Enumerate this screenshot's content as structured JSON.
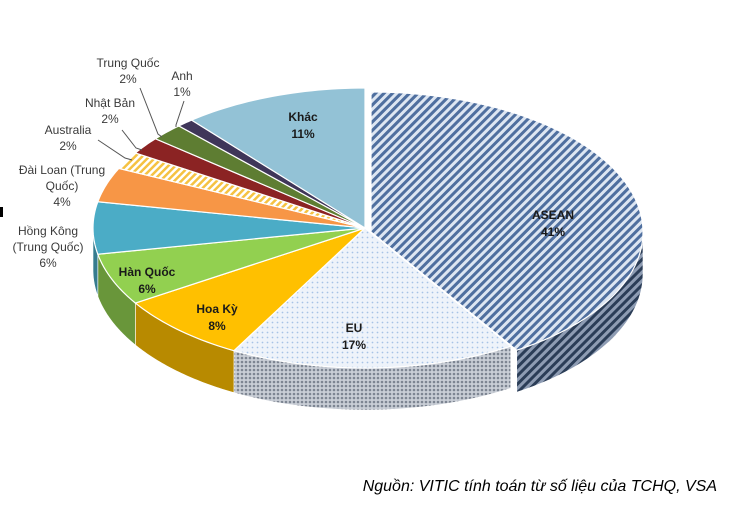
{
  "chart_data": {
    "type": "pie",
    "style": "3d-exploded-tilted",
    "slices": [
      {
        "label": "ASEAN",
        "value_label": "41%",
        "value": 41,
        "color": "#4f6f9f",
        "pattern": "diag-stripes",
        "label_inside": true
      },
      {
        "label": "EU",
        "value_label": "17%",
        "value": 17,
        "color": "#a7c3e6",
        "pattern": "dots",
        "label_inside": true
      },
      {
        "label": "Hoa Kỳ",
        "value_label": "8%",
        "value": 8,
        "color": "#ffc000",
        "pattern": "solid",
        "label_inside": true
      },
      {
        "label": "Hàn Quốc",
        "value_label": "6%",
        "value": 6,
        "color": "#92d050",
        "pattern": "solid",
        "label_inside": true
      },
      {
        "label": "Hồng Kông (Trung Quốc)",
        "label_lines": [
          "Hồng Kông",
          "(Trung Quốc)"
        ],
        "value_label": "6%",
        "value": 6,
        "color": "#4bacc6",
        "pattern": "solid",
        "label_inside": false
      },
      {
        "label": "Đài Loan (Trung Quốc)",
        "label_lines": [
          "Đài Loan (Trung",
          "Quốc)"
        ],
        "value_label": "4%",
        "value": 4,
        "color": "#f79646",
        "pattern": "solid",
        "label_inside": false
      },
      {
        "label": "Australia",
        "label_lines": [
          "Australia"
        ],
        "value_label": "2%",
        "value": 2,
        "color": "#f5c242",
        "pattern": "stripes-light",
        "label_inside": false
      },
      {
        "label": "Nhật Bản",
        "label_lines": [
          "Nhật Bản"
        ],
        "value_label": "2%",
        "value": 2,
        "color": "#8b2323",
        "pattern": "solid",
        "label_inside": false
      },
      {
        "label": "Trung Quốc",
        "label_lines": [
          "Trung Quốc"
        ],
        "value_label": "2%",
        "value": 2,
        "color": "#5e7d32",
        "pattern": "solid",
        "label_inside": false
      },
      {
        "label": "Anh",
        "label_lines": [
          "Anh"
        ],
        "value_label": "1%",
        "value": 1,
        "color": "#3f3659",
        "pattern": "solid",
        "label_inside": false
      },
      {
        "label": "Khác",
        "value_label": "11%",
        "value": 11,
        "color": "#93c2d6",
        "pattern": "solid",
        "label_inside": true
      }
    ],
    "start": "12 o'clock",
    "direction": "clockwise"
  },
  "source_note": "Nguồn: VITIC tính toán từ số liệu của TCHQ, VSA"
}
